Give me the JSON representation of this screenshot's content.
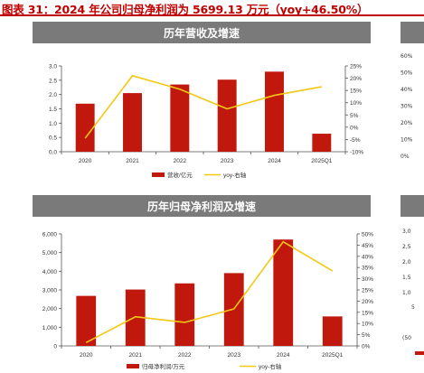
{
  "page": {
    "figure_title": "图表 31：2024 年公司归母净利润为 5699.13 万元（yoy+46.50%）",
    "colors": {
      "bar": "#c0180c",
      "line": "#f2c811",
      "header_bg": "#7a7a7a",
      "title_red": "#c00000"
    }
  },
  "chart_data": [
    {
      "type": "bar",
      "title": "历年营收及增速",
      "categories": [
        "2020",
        "2021",
        "2022",
        "2023",
        "2024",
        "2025Q1"
      ],
      "series": [
        {
          "name": "营收/亿元",
          "type": "bar",
          "axis": "left",
          "values": [
            1.68,
            2.05,
            2.35,
            2.52,
            2.8,
            0.63
          ]
        },
        {
          "name": "yoy-右轴",
          "type": "line",
          "axis": "right",
          "values": [
            -4.5,
            21.0,
            15.5,
            7.5,
            13.0,
            16.5
          ]
        }
      ],
      "y_left": {
        "ylim": [
          0,
          3.0
        ],
        "ticks": [
          "0.0",
          "0.5",
          "1.0",
          "1.5",
          "2.0",
          "2.5",
          "3.0"
        ]
      },
      "y_right": {
        "ylim": [
          -10,
          25
        ],
        "ticks": [
          "-10%",
          "-5%",
          "0%",
          "5%",
          "10%",
          "15%",
          "20%",
          "25%"
        ]
      },
      "legend": {
        "position": "bottom",
        "items": [
          "营收/亿元",
          "yoy-右轴"
        ]
      }
    },
    {
      "type": "bar",
      "title": "历年归母净利润及增速",
      "categories": [
        "2020",
        "2021",
        "2022",
        "2023",
        "2024",
        "2025Q1"
      ],
      "series": [
        {
          "name": "归母净利润/万元",
          "type": "bar",
          "axis": "left",
          "values": [
            2680,
            3020,
            3350,
            3900,
            5699.13,
            1580
          ]
        },
        {
          "name": "yoy-右轴",
          "type": "line",
          "axis": "right",
          "values": [
            1.5,
            13.0,
            10.5,
            16.5,
            46.5,
            33.5
          ]
        }
      ],
      "y_left": {
        "ylim": [
          0,
          6000
        ],
        "ticks": [
          "0",
          "1,000",
          "2,000",
          "3,000",
          "4,000",
          "5,000",
          "6,000"
        ]
      },
      "y_right": {
        "ylim": [
          0,
          50
        ],
        "ticks": [
          "0%",
          "5%",
          "10%",
          "15%",
          "20%",
          "25%",
          "30%",
          "35%",
          "40%",
          "45%",
          "50%"
        ]
      },
      "legend": {
        "position": "bottom",
        "items": [
          "归母净利润/万元",
          "yoy-右轴"
        ]
      }
    }
  ],
  "right_strip": {
    "top_ticks": [
      "60%",
      "50%",
      "40%",
      "30%",
      "20%",
      "10%",
      "0%"
    ],
    "bottom_ticks": [
      "3,0",
      "2,5",
      "2,0",
      "1,5",
      "1,0",
      "5",
      "(50"
    ]
  }
}
